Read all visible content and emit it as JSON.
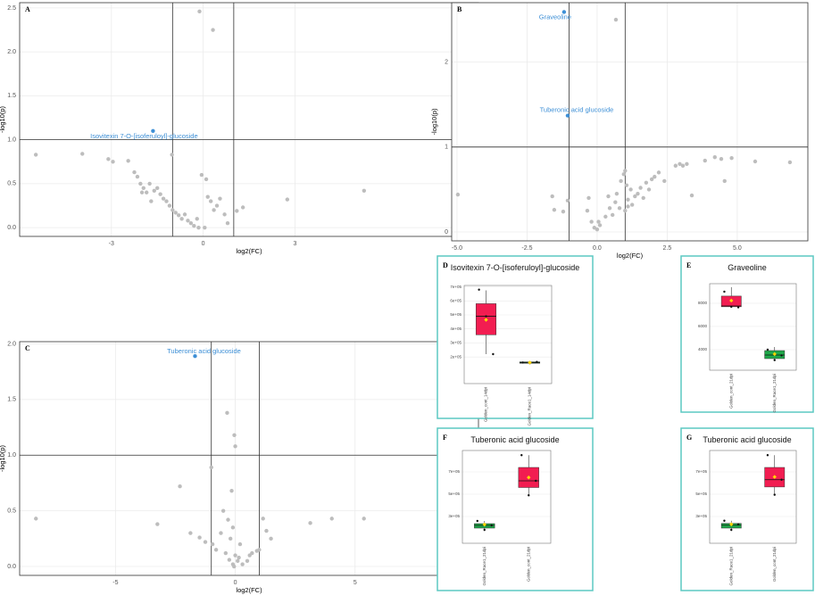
{
  "chart_data": [
    {
      "type": "scatter",
      "panel": "A",
      "xlabel": "log2(FC)",
      "ylabel": "-log10(p)",
      "color": "#bdbdbd",
      "grid": true,
      "xlim": [
        -6.0,
        9.0
      ],
      "ylim": [
        -0.1,
        2.56
      ],
      "xticks": [
        -3,
        0,
        3
      ],
      "yticks": [
        {
          "value": 0,
          "label": "0.0"
        },
        0.5,
        {
          "value": 1,
          "label": "1.0"
        },
        1.5,
        {
          "value": 2,
          "label": "2.0"
        },
        2.5
      ],
      "vlines": [
        -1,
        1
      ],
      "hline": 1,
      "x": [
        -5.47,
        -3.95,
        -3.1,
        -2.95,
        -2.45,
        -2.25,
        -2.15,
        -2.05,
        -1.95,
        -1.85,
        -1.75,
        -1.6,
        -1.5,
        -1.4,
        -1.3,
        -1.2,
        -1.1,
        -1.0,
        -0.9,
        -0.8,
        -0.7,
        -0.6,
        -0.5,
        -0.4,
        -0.3,
        -0.2,
        -0.12,
        0.32,
        -0.05,
        0.1,
        0.15,
        0.25,
        0.35,
        0.45,
        0.55,
        0.7,
        0.8,
        1.1,
        1.3,
        2.75,
        5.26,
        -1.02,
        -2.0,
        -1.7,
        -0.15,
        0.05
      ],
      "y": [
        0.83,
        0.84,
        0.78,
        0.75,
        0.76,
        0.63,
        0.58,
        0.5,
        0.45,
        0.4,
        0.5,
        0.42,
        0.45,
        0.38,
        0.33,
        0.3,
        0.25,
        0.2,
        0.17,
        0.14,
        0.1,
        0.15,
        0.08,
        0.05,
        0.02,
        0.1,
        2.46,
        2.25,
        0.6,
        0.55,
        0.35,
        0.3,
        0.2,
        0.25,
        0.33,
        0.15,
        0.05,
        0.19,
        0.23,
        0.32,
        0.42,
        0.83,
        0.4,
        0.3,
        0.0,
        0.0
      ],
      "highlights": [
        {
          "label": "Isovitexin 7-O-[isoferuloyl]-glucoside",
          "x": -1.64,
          "y": 1.1,
          "color": "#3d8fd6"
        }
      ]
    },
    {
      "type": "scatter",
      "panel": "B",
      "xlabel": "log2(FC)",
      "ylabel": "-log10(p)",
      "color": "#bdbdbd",
      "grid": true,
      "xlim": [
        -5.19,
        7.52
      ],
      "ylim": [
        -0.105,
        2.7
      ],
      "xticks": [
        {
          "value": -5,
          "label": "-5.0"
        },
        -2.5,
        {
          "value": 0,
          "label": "0.0"
        },
        2.5,
        {
          "value": 5,
          "label": "5.0"
        }
      ],
      "yticks": [
        0,
        1,
        2
      ],
      "vlines": [
        -1,
        1
      ],
      "hline": 1,
      "x": [
        -4.97,
        -1.6,
        -1.53,
        -1.21,
        -1.05,
        0.67,
        -0.3,
        -0.35,
        -0.2,
        -0.1,
        0.0,
        0.05,
        0.1,
        0.3,
        0.4,
        0.45,
        0.55,
        0.65,
        0.7,
        0.8,
        0.85,
        0.95,
        1.0,
        1.05,
        1.1,
        1.2,
        1.25,
        1.35,
        1.45,
        1.55,
        1.65,
        1.75,
        1.85,
        1.95,
        2.05,
        2.2,
        2.4,
        2.8,
        2.95,
        3.06,
        3.2,
        3.38,
        3.85,
        4.2,
        4.43,
        4.55,
        4.8,
        5.64,
        6.88,
        1.1,
        1.0
      ],
      "y": [
        0.44,
        0.42,
        0.26,
        0.24,
        0.37,
        2.5,
        0.4,
        0.25,
        0.12,
        0.05,
        0.03,
        0.12,
        0.08,
        0.18,
        0.42,
        0.28,
        0.2,
        0.35,
        0.45,
        0.28,
        0.6,
        0.68,
        0.72,
        0.55,
        0.38,
        0.5,
        0.32,
        0.42,
        0.45,
        0.52,
        0.4,
        0.58,
        0.5,
        0.62,
        0.65,
        0.7,
        0.6,
        0.78,
        0.8,
        0.78,
        0.8,
        0.43,
        0.84,
        0.88,
        0.86,
        0.6,
        0.87,
        0.83,
        0.82,
        0.3,
        0.25
      ],
      "highlights": [
        {
          "label": "Graveoline",
          "x": -1.18,
          "y": 2.59,
          "color": "#3d8fd6"
        },
        {
          "label": "Tuberonic acid glucoside",
          "x": -1.05,
          "y": 1.37,
          "color": "#3d8fd6"
        }
      ]
    },
    {
      "type": "scatter",
      "panel": "C",
      "xlabel": "log2(FC)",
      "ylabel": "-log10(p)",
      "color": "#bdbdbd",
      "grid": true,
      "xlim": [
        -9.0,
        10.15
      ],
      "ylim": [
        -0.08,
        2.02
      ],
      "xticks": [
        -5,
        0,
        5
      ],
      "yticks": [
        {
          "value": 0,
          "label": "0.0"
        },
        0.5,
        {
          "value": 1,
          "label": "1.0"
        },
        1.5,
        {
          "value": 2,
          "label": "2.0"
        }
      ],
      "vlines": [
        -1,
        1
      ],
      "hline": 1,
      "x": [
        -8.32,
        -3.25,
        -2.31,
        -1.87,
        -1.49,
        -1.25,
        -0.95,
        -0.8,
        -0.34,
        -0.04,
        0.0,
        -1.0,
        -0.15,
        -0.5,
        -0.3,
        -0.1,
        -0.6,
        -0.2,
        0.2,
        -0.4,
        0.0,
        0.1,
        0.3,
        -0.1,
        0.5,
        0.7,
        0.9,
        1.0,
        1.16,
        1.3,
        1.49,
        3.13,
        4.03,
        5.37,
        -0.05,
        0.15,
        -0.25,
        0.6
      ],
      "y": [
        0.43,
        0.38,
        0.72,
        0.3,
        0.26,
        0.22,
        0.2,
        0.15,
        1.38,
        1.18,
        1.08,
        0.89,
        0.68,
        0.5,
        0.42,
        0.35,
        0.3,
        0.25,
        0.2,
        0.12,
        0.1,
        0.05,
        0.02,
        0.02,
        0.05,
        0.12,
        0.14,
        0.15,
        0.43,
        0.32,
        0.25,
        0.39,
        0.43,
        0.43,
        0.0,
        0.08,
        0.06,
        0.1
      ],
      "highlights": [
        {
          "label": "Tuberonic acid glucoside",
          "x": -1.68,
          "y": 1.89,
          "color": "#3d8fd6"
        }
      ]
    },
    {
      "type": "box",
      "panel": "D",
      "title": "Isovitexin 7-O-[isoferuloyl]-glucoside",
      "categories": [
        "Golden_cont_14dpi",
        "Golden_Race1_14dpi"
      ],
      "colors": [
        "#f21d51",
        "#1fa84a"
      ],
      "mean_color": "#ffd700",
      "ylim": [
        10000,
        710000
      ],
      "yticks": [
        {
          "value": 200000,
          "label": "2e+05"
        },
        {
          "value": 300000,
          "label": "3e+05"
        },
        {
          "value": 400000,
          "label": "4e+05"
        },
        {
          "value": 500000,
          "label": "5e+05"
        },
        {
          "value": 600000,
          "label": "6e+05"
        },
        {
          "value": 700000,
          "label": "7e+05"
        }
      ],
      "min": [
        220000,
        150000
      ],
      "q1": [
        358000,
        155000
      ],
      "median": [
        490000,
        160000
      ],
      "q3": [
        580000,
        165000
      ],
      "max": [
        675000,
        170000
      ],
      "mean": [
        465000,
        160000
      ],
      "points": [
        [
          680000,
          490000,
          220000
        ],
        [
          160000,
          155000,
          165000
        ]
      ]
    },
    {
      "type": "box",
      "panel": "E",
      "title": "Graveoline",
      "categories": [
        "Golden_cont_21dpi",
        "Golden_Race1_21dpi"
      ],
      "colors": [
        "#f21d51",
        "#1fa84a"
      ],
      "mean_color": "#ffd700",
      "ylim": [
        2230,
        9690
      ],
      "yticks": [
        4000,
        6000,
        8000
      ],
      "min": [
        7620,
        3080
      ],
      "q1": [
        7700,
        3230
      ],
      "median": [
        7770,
        3540
      ],
      "q3": [
        8620,
        3920
      ],
      "max": [
        9390,
        4230
      ],
      "mean": [
        8230,
        3620
      ],
      "points": [
        [
          9000,
          7700,
          7650
        ],
        [
          4000,
          3100,
          3500
        ]
      ]
    },
    {
      "type": "box",
      "panel": "F",
      "title": "Tuberonic acid glucoside",
      "categories": [
        "Golden_Race1_21dpi",
        "Golden_cont_21dpi"
      ],
      "colors": [
        "#1fa84a",
        "#f21d51"
      ],
      "mean_color": "#ffd700",
      "ylim": [
        60000,
        892000
      ],
      "yticks": [
        {
          "value": 300000,
          "label": "3e+05"
        },
        {
          "value": 500000,
          "label": "5e+05"
        },
        {
          "value": 700000,
          "label": "7e+05"
        }
      ],
      "min": [
        170000,
        490000
      ],
      "q1": [
        196000,
        560000
      ],
      "median": [
        220000,
        620000
      ],
      "q3": [
        236000,
        740000
      ],
      "max": [
        260000,
        850000
      ],
      "mean": [
        228000,
        650000
      ],
      "points": [
        [
          260000,
          180000,
          220000
        ],
        [
          850000,
          490000,
          620000
        ]
      ]
    },
    {
      "type": "box",
      "panel": "G",
      "title": "Tuberonic acid glucoside",
      "categories": [
        "Golden_Race1_21dpi",
        "Golden_cont_21dpi"
      ],
      "colors": [
        "#1fa84a",
        "#f21d51"
      ],
      "mean_color": "#ffd700",
      "ylim": [
        60000,
        892000
      ],
      "yticks": [
        {
          "value": 300000,
          "label": "3e+05"
        },
        {
          "value": 500000,
          "label": "5e+05"
        },
        {
          "value": 700000,
          "label": "7e+05"
        }
      ],
      "min": [
        170000,
        490000
      ],
      "q1": [
        196000,
        565000
      ],
      "median": [
        222000,
        630000
      ],
      "q3": [
        238000,
        740000
      ],
      "max": [
        262000,
        850000
      ],
      "mean": [
        230000,
        655000
      ],
      "points": [
        [
          262000,
          180000,
          230000
        ],
        [
          850000,
          495000,
          630000
        ]
      ]
    }
  ]
}
